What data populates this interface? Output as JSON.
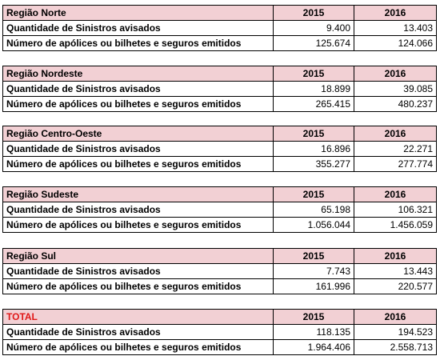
{
  "years": [
    "2015",
    "2016"
  ],
  "row_labels": {
    "sinistros": "Quantidade de Sinistros avisados",
    "apolices": "Número de apólices ou bilhetes e seguros emitidos"
  },
  "tables": [
    {
      "region": "Região Norte",
      "sinistros": [
        "9.400",
        "13.403"
      ],
      "apolices": [
        "125.674",
        "124.066"
      ]
    },
    {
      "region": "Região Nordeste",
      "sinistros": [
        "18.899",
        "39.085"
      ],
      "apolices": [
        "265.415",
        "480.237"
      ]
    },
    {
      "region": "Região Centro-Oeste",
      "sinistros": [
        "16.896",
        "22.271"
      ],
      "apolices": [
        "355.277",
        "277.774"
      ]
    },
    {
      "region": "Região Sudeste",
      "sinistros": [
        "65.198",
        "106.321"
      ],
      "apolices": [
        "1.056.044",
        "1.456.059"
      ]
    },
    {
      "region": "Região Sul",
      "sinistros": [
        "7.743",
        "13.443"
      ],
      "apolices": [
        "161.996",
        "220.577"
      ]
    },
    {
      "region": "TOTAL",
      "sinistros": [
        "118.135",
        "194.523"
      ],
      "apolices": [
        "1.964.406",
        "2.558.713"
      ]
    }
  ],
  "colors": {
    "header_bg": "#f2d0d4",
    "total_label": "#e01818"
  }
}
